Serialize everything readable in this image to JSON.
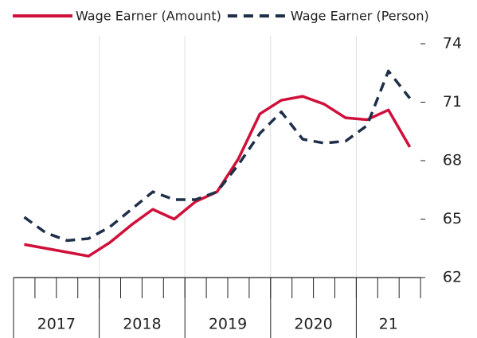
{
  "chart_data": {
    "type": "line",
    "categories": [
      null,
      null,
      null,
      null,
      null,
      null,
      null,
      null,
      null,
      null,
      null,
      null,
      null,
      null,
      null,
      null,
      null,
      null,
      null
    ],
    "groups": [
      "2017",
      "2018",
      "2019",
      "2020",
      "21"
    ],
    "series": [
      {
        "name": "Wage Earner (Amount)",
        "color": "#d0103a",
        "dash": false,
        "values": [
          63.7,
          63.5,
          63.3,
          63.1,
          63.8,
          64.7,
          65.5,
          65.0,
          65.9,
          66.4,
          68.1,
          70.4,
          71.1,
          71.3,
          70.9,
          70.2,
          70.1,
          70.6,
          68.7
        ]
      },
      {
        "name": "Wage Earner (Person)",
        "color": "#1f2f4a",
        "dash": true,
        "values": [
          65.1,
          64.3,
          63.9,
          64.0,
          64.6,
          65.5,
          66.4,
          66.0,
          66.0,
          66.4,
          67.8,
          69.4,
          70.5,
          69.1,
          68.9,
          69.0,
          69.8,
          72.6,
          71.2
        ]
      }
    ],
    "ylim": [
      62,
      74
    ],
    "yticks": [
      62,
      65,
      68,
      71,
      74
    ],
    "y_axis_side": "right",
    "legend": "top"
  }
}
